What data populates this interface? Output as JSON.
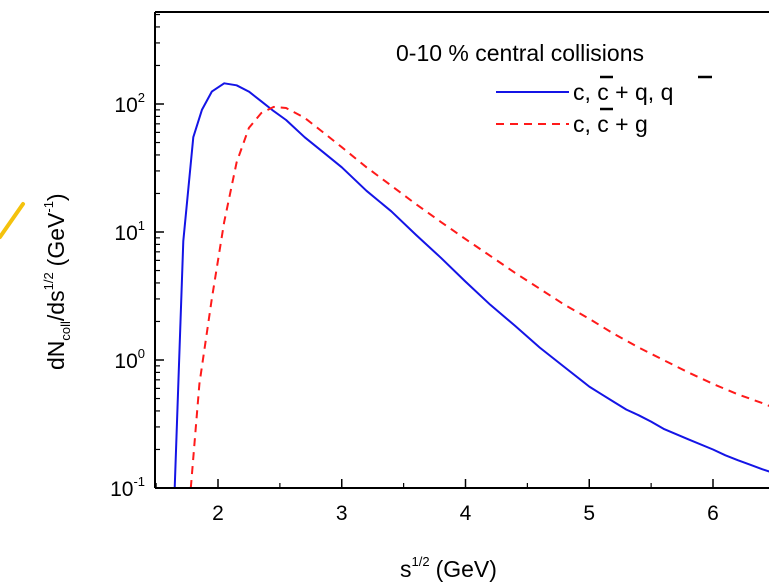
{
  "chart_data": {
    "type": "line",
    "title": "",
    "xlabel": "s",
    "xlabel_sup": "1/2",
    "xlabel_unit": "(GeV)",
    "ylabel": {
      "main": "dN",
      "sub": "coll",
      "mid": "/ds",
      "sup": "1/2",
      "unit_open": "(GeV",
      "unit_sup": "-1",
      "unit_close": ")"
    },
    "xlim": [
      1.48,
      6.5
    ],
    "ylim": [
      0.1,
      500
    ],
    "yscale": "log",
    "grid": false,
    "xticks": [
      {
        "value": 2,
        "label": "2"
      },
      {
        "value": 3,
        "label": "3"
      },
      {
        "value": 4,
        "label": "4"
      },
      {
        "value": 5,
        "label": "5"
      },
      {
        "value": 6,
        "label": "6"
      }
    ],
    "yticks": [
      {
        "value": 0.1,
        "base": "10",
        "exp": "-1"
      },
      {
        "value": 1,
        "base": "10",
        "exp": "0"
      },
      {
        "value": 10,
        "base": "10",
        "exp": "1"
      },
      {
        "value": 100,
        "base": "10",
        "exp": "2"
      }
    ],
    "legend": {
      "placement": "top-right",
      "header": "0-10 % central collisions"
    },
    "series": [
      {
        "name": "c, c + q, q",
        "legend_parts": {
          "a": "c, ",
          "b": "c",
          "c": " + q, ",
          "d": "q"
        },
        "color": "#1414e6",
        "style": "solid",
        "x": [
          1.65,
          1.72,
          1.8,
          1.87,
          1.95,
          2.05,
          2.15,
          2.25,
          2.35,
          2.45,
          2.55,
          2.7,
          2.85,
          3.0,
          3.2,
          3.4,
          3.6,
          3.8,
          4.0,
          4.2,
          4.4,
          4.6,
          4.8,
          5.0,
          5.1,
          5.2,
          5.3,
          5.4,
          5.5,
          5.6,
          5.8,
          6.0,
          6.1,
          6.2,
          6.3,
          6.4,
          6.5
        ],
        "y": [
          0.1,
          8.5,
          55,
          90,
          125,
          145,
          140,
          125,
          105,
          88,
          75,
          55,
          42,
          32,
          21,
          14.5,
          9.5,
          6.3,
          4.1,
          2.7,
          1.85,
          1.25,
          0.88,
          0.62,
          0.54,
          0.47,
          0.41,
          0.37,
          0.33,
          0.29,
          0.24,
          0.2,
          0.18,
          0.165,
          0.152,
          0.14,
          0.13
        ]
      },
      {
        "name": "c, c + g",
        "legend_parts": {
          "a": "c, ",
          "b": "c",
          "c": " + g"
        },
        "color": "#ff1a1a",
        "style": "dashed",
        "x": [
          1.78,
          1.85,
          1.95,
          2.05,
          2.15,
          2.25,
          2.35,
          2.45,
          2.55,
          2.7,
          2.85,
          3.0,
          3.2,
          3.4,
          3.6,
          3.8,
          4.0,
          4.2,
          4.4,
          4.6,
          4.8,
          5.0,
          5.2,
          5.4,
          5.6,
          5.8,
          6.0,
          6.2,
          6.4,
          6.5
        ],
        "y": [
          0.1,
          0.65,
          3.0,
          12,
          35,
          65,
          85,
          95,
          93,
          78,
          60,
          46,
          32,
          23,
          16.5,
          12,
          8.8,
          6.5,
          4.8,
          3.6,
          2.7,
          2.1,
          1.6,
          1.25,
          1.0,
          0.8,
          0.65,
          0.54,
          0.46,
          0.42
        ]
      }
    ]
  }
}
